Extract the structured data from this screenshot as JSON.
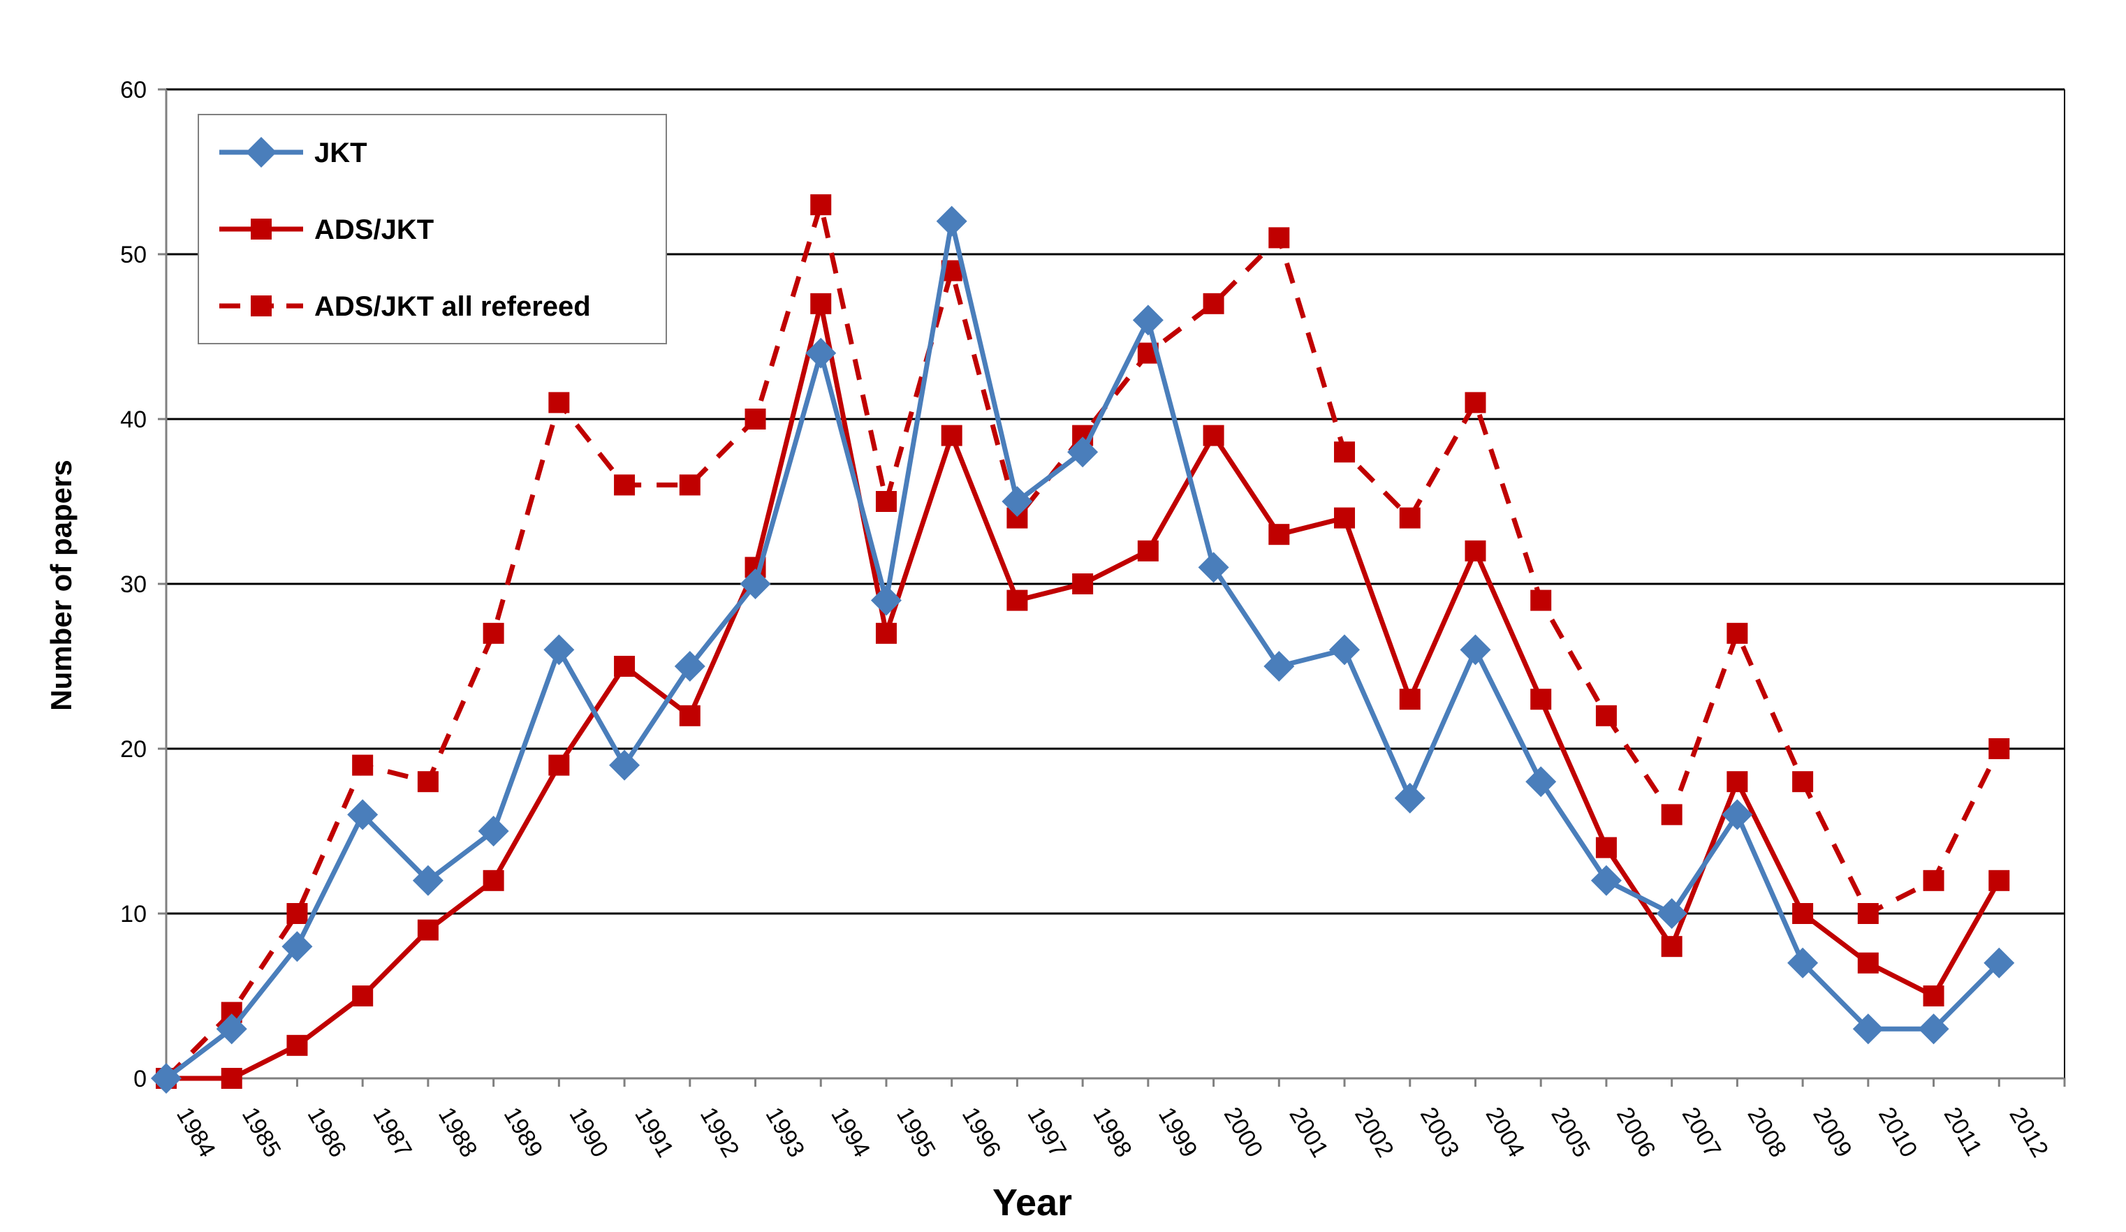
{
  "chart_data": {
    "type": "line",
    "title": "",
    "xlabel": "Year",
    "ylabel": "Number of papers",
    "ylim": [
      0,
      60
    ],
    "yticks": [
      0,
      10,
      20,
      30,
      40,
      50,
      60
    ],
    "grid": "horizontal",
    "legend_position": "top-left",
    "categories": [
      "1984",
      "1985",
      "1986",
      "1987",
      "1988",
      "1989",
      "1990",
      "1991",
      "1992",
      "1993",
      "1994",
      "1995",
      "1996",
      "1997",
      "1998",
      "1999",
      "2000",
      "2001",
      "2002",
      "2003",
      "2004",
      "2005",
      "2006",
      "2007",
      "2008",
      "2009",
      "2010",
      "2011",
      "2012"
    ],
    "series": [
      {
        "name": "JKT",
        "color": "#4a7ebb",
        "marker": "diamond",
        "line_style": "solid",
        "values": [
          0,
          3,
          8,
          16,
          12,
          15,
          26,
          19,
          25,
          30,
          44,
          29,
          52,
          35,
          38,
          46,
          31,
          25,
          26,
          17,
          26,
          18,
          12,
          10,
          16,
          7,
          3,
          3,
          7
        ]
      },
      {
        "name": "ADS/JKT",
        "color": "#c00000",
        "marker": "square",
        "line_style": "solid",
        "values": [
          0,
          0,
          2,
          5,
          9,
          12,
          19,
          25,
          22,
          31,
          47,
          27,
          39,
          29,
          30,
          32,
          39,
          33,
          34,
          23,
          32,
          23,
          14,
          8,
          18,
          10,
          7,
          5,
          12
        ]
      },
      {
        "name": "ADS/JKT all refereed",
        "color": "#c00000",
        "marker": "square",
        "line_style": "dashed",
        "values": [
          0,
          4,
          10,
          19,
          18,
          27,
          41,
          36,
          36,
          40,
          53,
          35,
          49,
          34,
          39,
          44,
          47,
          51,
          38,
          34,
          41,
          29,
          22,
          16,
          27,
          18,
          10,
          12,
          20
        ]
      }
    ]
  }
}
